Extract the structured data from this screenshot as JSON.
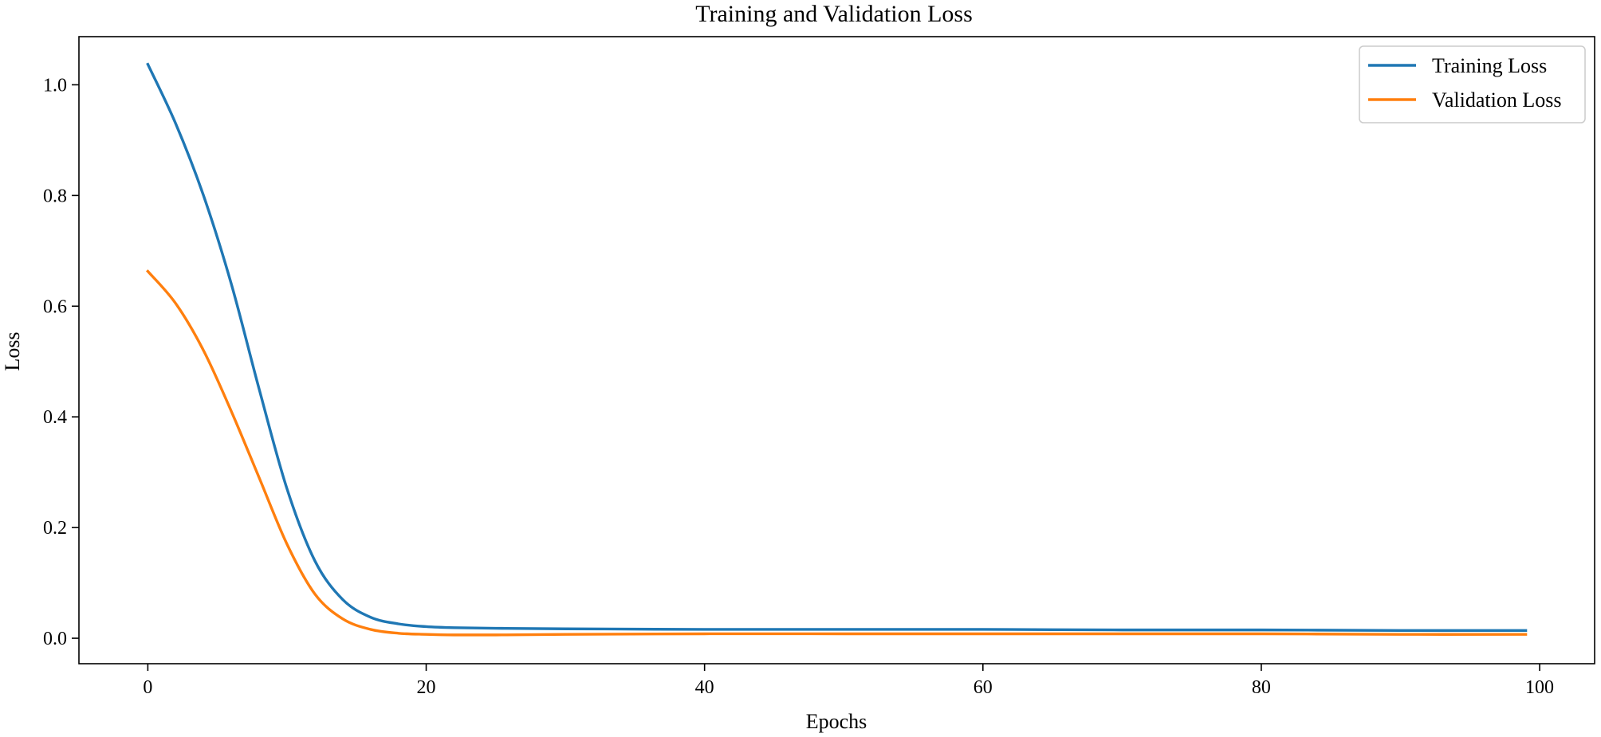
{
  "chart_data": {
    "type": "line",
    "title": "Training and Validation Loss",
    "xlabel": "Epochs",
    "ylabel": "Loss",
    "xlim": [
      -4.95,
      103.95
    ],
    "ylim": [
      -0.046,
      1.087
    ],
    "xticks": [
      0,
      20,
      40,
      60,
      80,
      100
    ],
    "yticks": [
      0.0,
      0.2,
      0.4,
      0.6,
      0.8,
      1.0
    ],
    "xtick_labels": [
      "0",
      "20",
      "40",
      "60",
      "80",
      "100"
    ],
    "ytick_labels": [
      "0.0",
      "0.2",
      "0.4",
      "0.6",
      "0.8",
      "1.0"
    ],
    "grid": false,
    "legend_position": "top-right",
    "x": [
      0,
      2,
      4,
      6,
      8,
      10,
      12,
      14,
      16,
      18,
      20,
      22,
      25,
      30,
      40,
      50,
      60,
      70,
      80,
      90,
      99
    ],
    "series": [
      {
        "name": "Training Loss",
        "color": "#1f77b4",
        "values": [
          1.037,
          0.93,
          0.8,
          0.64,
          0.45,
          0.27,
          0.14,
          0.07,
          0.038,
          0.026,
          0.021,
          0.019,
          0.018,
          0.017,
          0.016,
          0.016,
          0.016,
          0.015,
          0.015,
          0.014,
          0.014
        ]
      },
      {
        "name": "Validation Loss",
        "color": "#ff7f0e",
        "values": [
          0.663,
          0.605,
          0.52,
          0.41,
          0.29,
          0.17,
          0.08,
          0.035,
          0.016,
          0.009,
          0.007,
          0.006,
          0.006,
          0.007,
          0.008,
          0.008,
          0.008,
          0.008,
          0.008,
          0.007,
          0.007
        ]
      }
    ]
  }
}
